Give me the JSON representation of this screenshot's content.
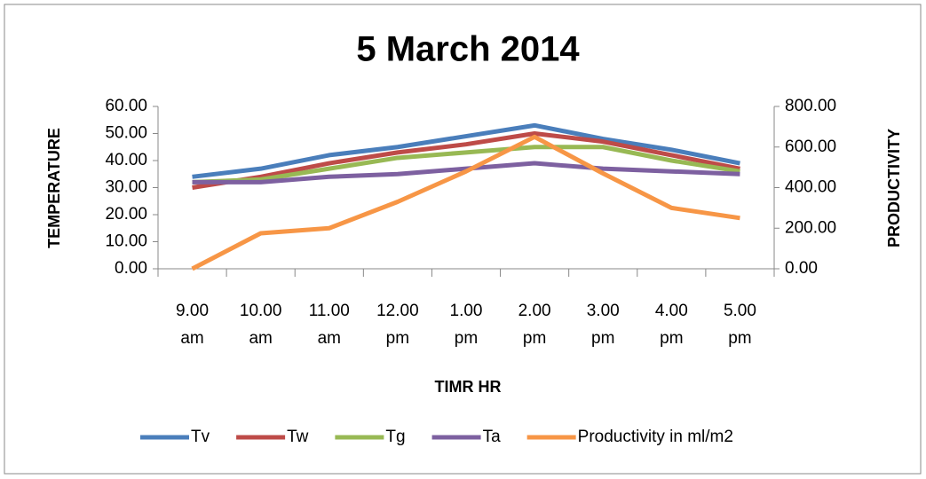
{
  "chart_data": {
    "type": "line",
    "title": "5 March 2014",
    "x_label": "TIMR HR",
    "y_label": "TEMPERATURE",
    "y2_label": "PRODUCTIVITY",
    "categories": [
      "9.00 am",
      "10.00 am",
      "11.00 am",
      "12.00 pm",
      "1.00 pm",
      "2.00 pm",
      "3.00 pm",
      "4.00 pm",
      "5.00 pm"
    ],
    "series": [
      {
        "name": "Tv",
        "color": "#4a7ebb",
        "values": [
          34,
          37,
          42,
          45,
          49,
          53,
          48,
          44,
          39
        ]
      },
      {
        "name": "Tw",
        "color": "#be4b48",
        "values": [
          30,
          34,
          39,
          43,
          46,
          50,
          47,
          42,
          37
        ]
      },
      {
        "name": "Tg",
        "color": "#98b954",
        "values": [
          32,
          33,
          37,
          41,
          43,
          45,
          45,
          40,
          36
        ]
      },
      {
        "name": "Ta",
        "color": "#7d60a0",
        "values": [
          32,
          32,
          34,
          35,
          37,
          39,
          37,
          36,
          35
        ]
      },
      {
        "name": "Productivity in ml/m2",
        "color": "#f79646",
        "axis": "y2",
        "values": [
          0,
          175,
          200,
          330,
          480,
          650,
          470,
          300,
          250
        ]
      }
    ],
    "ylim": [
      0,
      60
    ],
    "yticks": [
      {
        "value": 0,
        "label": "0.00"
      },
      {
        "value": 10,
        "label": "10.00"
      },
      {
        "value": 20,
        "label": "20.00"
      },
      {
        "value": 30,
        "label": "30.00"
      },
      {
        "value": 40,
        "label": "40.00"
      },
      {
        "value": 50,
        "label": "50.00"
      },
      {
        "value": 60,
        "label": "60.00"
      }
    ],
    "y2lim": [
      0,
      800
    ],
    "y2ticks": [
      {
        "value": 0,
        "label": "0.00"
      },
      {
        "value": 200,
        "label": "200.00"
      },
      {
        "value": 400,
        "label": "400.00"
      },
      {
        "value": 600,
        "label": "600.00"
      },
      {
        "value": 800,
        "label": "800.00"
      }
    ],
    "grid": false,
    "legend": "bottom"
  }
}
